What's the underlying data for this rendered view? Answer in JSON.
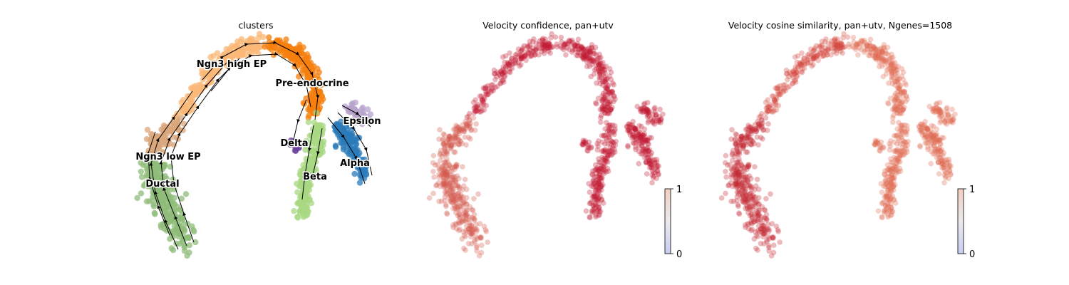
{
  "chart_data": [
    {
      "type": "scatter",
      "title": "clusters",
      "overlay": "velocity streamlines",
      "clusters": [
        {
          "name": "Ductal",
          "color": "#8fbc7a"
        },
        {
          "name": "Ngn3 low EP",
          "color": "#d9a77c"
        },
        {
          "name": "Ngn3 high EP",
          "color": "#fbb877"
        },
        {
          "name": "Pre-endocrine",
          "color": "#f57f0d"
        },
        {
          "name": "Beta",
          "color": "#a8d881"
        },
        {
          "name": "Alpha",
          "color": "#2b7bb9"
        },
        {
          "name": "Delta",
          "color": "#6a3d9a"
        },
        {
          "name": "Epsilon",
          "color": "#b7a3cc"
        }
      ]
    },
    {
      "type": "scatter",
      "title": "Velocity confidence, pan+utv",
      "colorbar": {
        "min": 0,
        "max": 1,
        "ticks": [
          "1",
          "0"
        ],
        "colormap": "coolwarm"
      }
    },
    {
      "type": "scatter",
      "title": "Velocity cosine similarity, pan+utv, Ngenes=1508",
      "colorbar": {
        "min": 0,
        "max": 1,
        "ticks": [
          "1",
          "0"
        ],
        "colormap": "coolwarm"
      }
    }
  ]
}
